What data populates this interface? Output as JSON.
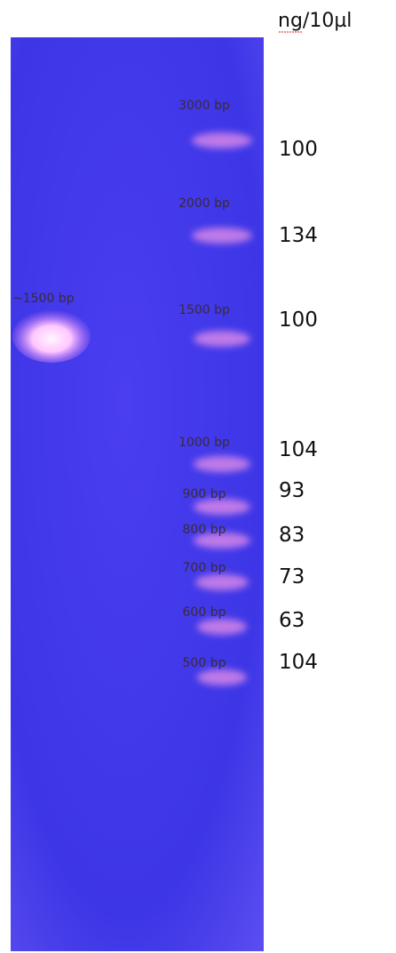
{
  "header": {
    "unit": "ng/10µl"
  },
  "sample": {
    "label": "~1500 bp"
  },
  "ladder": [
    {
      "size": "3000 bp",
      "amount": "100"
    },
    {
      "size": "2000 bp",
      "amount": "134"
    },
    {
      "size": "1500 bp",
      "amount": "100"
    },
    {
      "size": "1000 bp",
      "amount": "104"
    },
    {
      "size": "900 bp",
      "amount": "93"
    },
    {
      "size": "800 bp",
      "amount": "83"
    },
    {
      "size": "700 bp",
      "amount": "73"
    },
    {
      "size": "600 bp",
      "amount": "63"
    },
    {
      "size": "500 bp",
      "amount": "104"
    }
  ]
}
